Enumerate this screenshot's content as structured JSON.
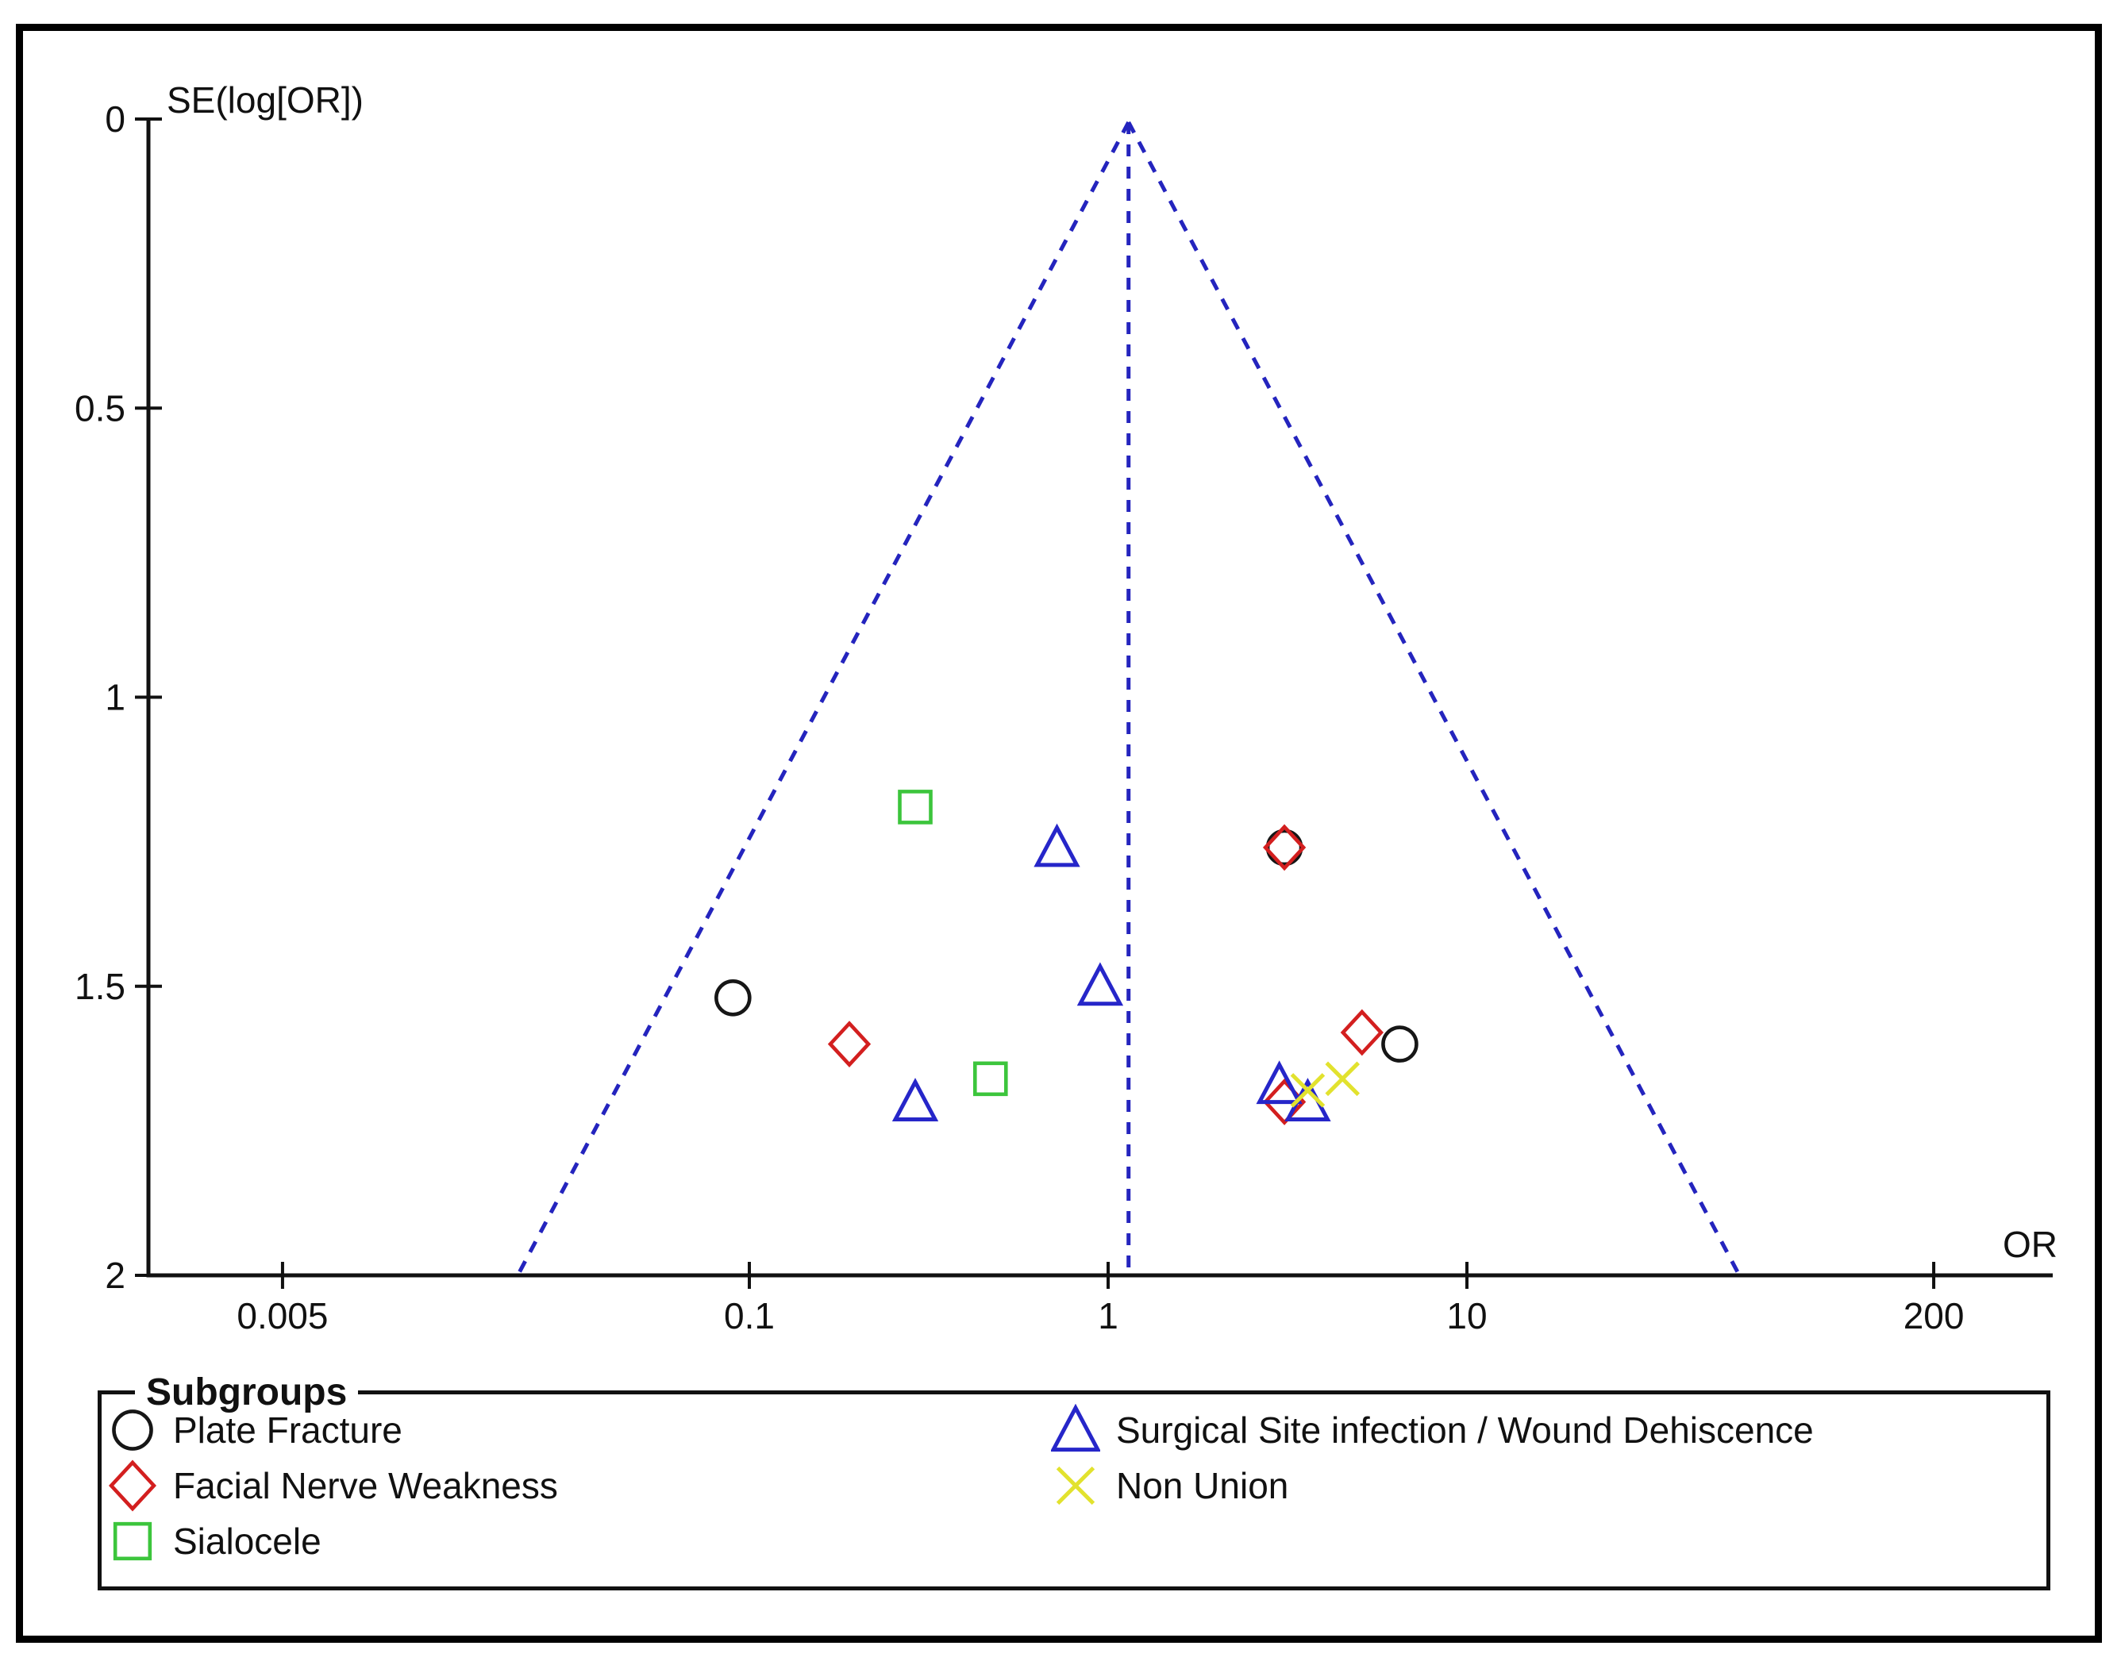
{
  "chart_data": {
    "type": "scatter",
    "subtype": "funnel-plot",
    "title": "",
    "xlabel": "OR",
    "ylabel": "SE(log[OR])",
    "x_scale": "log",
    "x_ticks": [
      0.005,
      0.1,
      1,
      10,
      200
    ],
    "x_tick_labels": [
      "0.005",
      "0.1",
      "1",
      "10",
      "200"
    ],
    "y_ticks": [
      0,
      0.5,
      1,
      1.5,
      2
    ],
    "y_tick_labels": [
      "0",
      "0.5",
      "1",
      "1.5",
      "2"
    ],
    "y_range": [
      0,
      2
    ],
    "x_range": [
      0.002,
      500
    ],
    "grid": false,
    "funnel": {
      "center_or": 1.14,
      "z": 1.96,
      "se_top": 0,
      "se_bottom": 2,
      "line_color": "#2424BE",
      "line_style": "dashed"
    },
    "series": [
      {
        "name": "Plate Fracture",
        "marker": "circle",
        "color": "#161616",
        "points": [
          {
            "or": 0.09,
            "se": 1.52
          },
          {
            "or": 3.1,
            "se": 1.26
          },
          {
            "or": 6.5,
            "se": 1.6
          }
        ]
      },
      {
        "name": "Facial Nerve Weakness",
        "marker": "diamond",
        "color": "#D31F1F",
        "points": [
          {
            "or": 0.19,
            "se": 1.6
          },
          {
            "or": 3.1,
            "se": 1.26
          },
          {
            "or": 3.1,
            "se": 1.7
          },
          {
            "or": 5.1,
            "se": 1.58
          }
        ]
      },
      {
        "name": "Sialocele",
        "marker": "square",
        "color": "#3CC53C",
        "points": [
          {
            "or": 0.29,
            "se": 1.19
          },
          {
            "or": 0.47,
            "se": 1.66
          }
        ]
      },
      {
        "name": "Surgical Site infection / Wound Dehiscence",
        "marker": "triangle",
        "color": "#2626C9",
        "points": [
          {
            "or": 0.29,
            "se": 1.7
          },
          {
            "or": 0.72,
            "se": 1.26
          },
          {
            "or": 0.95,
            "se": 1.5
          },
          {
            "or": 3.0,
            "se": 1.67
          },
          {
            "or": 3.6,
            "se": 1.7
          }
        ]
      },
      {
        "name": "Non Union",
        "marker": "xmark",
        "color": "#E2E22E",
        "points": [
          {
            "or": 3.6,
            "se": 1.68
          },
          {
            "or": 4.5,
            "se": 1.66
          }
        ]
      }
    ],
    "legend": {
      "title": "Subgroups",
      "position": "bottom",
      "columns": [
        [
          0,
          1,
          2
        ],
        [
          3,
          4
        ]
      ]
    }
  }
}
